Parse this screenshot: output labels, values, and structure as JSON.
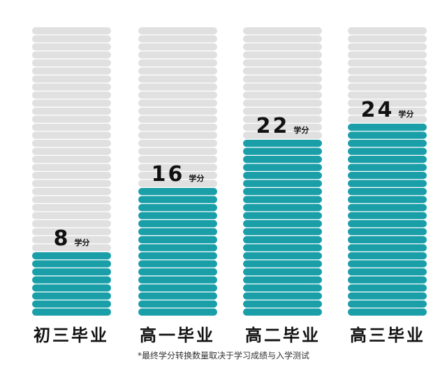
{
  "chart_data": {
    "type": "bar",
    "categories": [
      "初三毕业",
      "高一毕业",
      "高二毕业",
      "高三毕业"
    ],
    "values": [
      8,
      16,
      22,
      24
    ],
    "unit": "学分",
    "ylim": [
      0,
      36
    ],
    "colors": {
      "filled": "#1a9fa9",
      "empty": "#e0e0e0"
    }
  },
  "footnote": "*最终学分转换数量取决于学习成绩与入学测试"
}
